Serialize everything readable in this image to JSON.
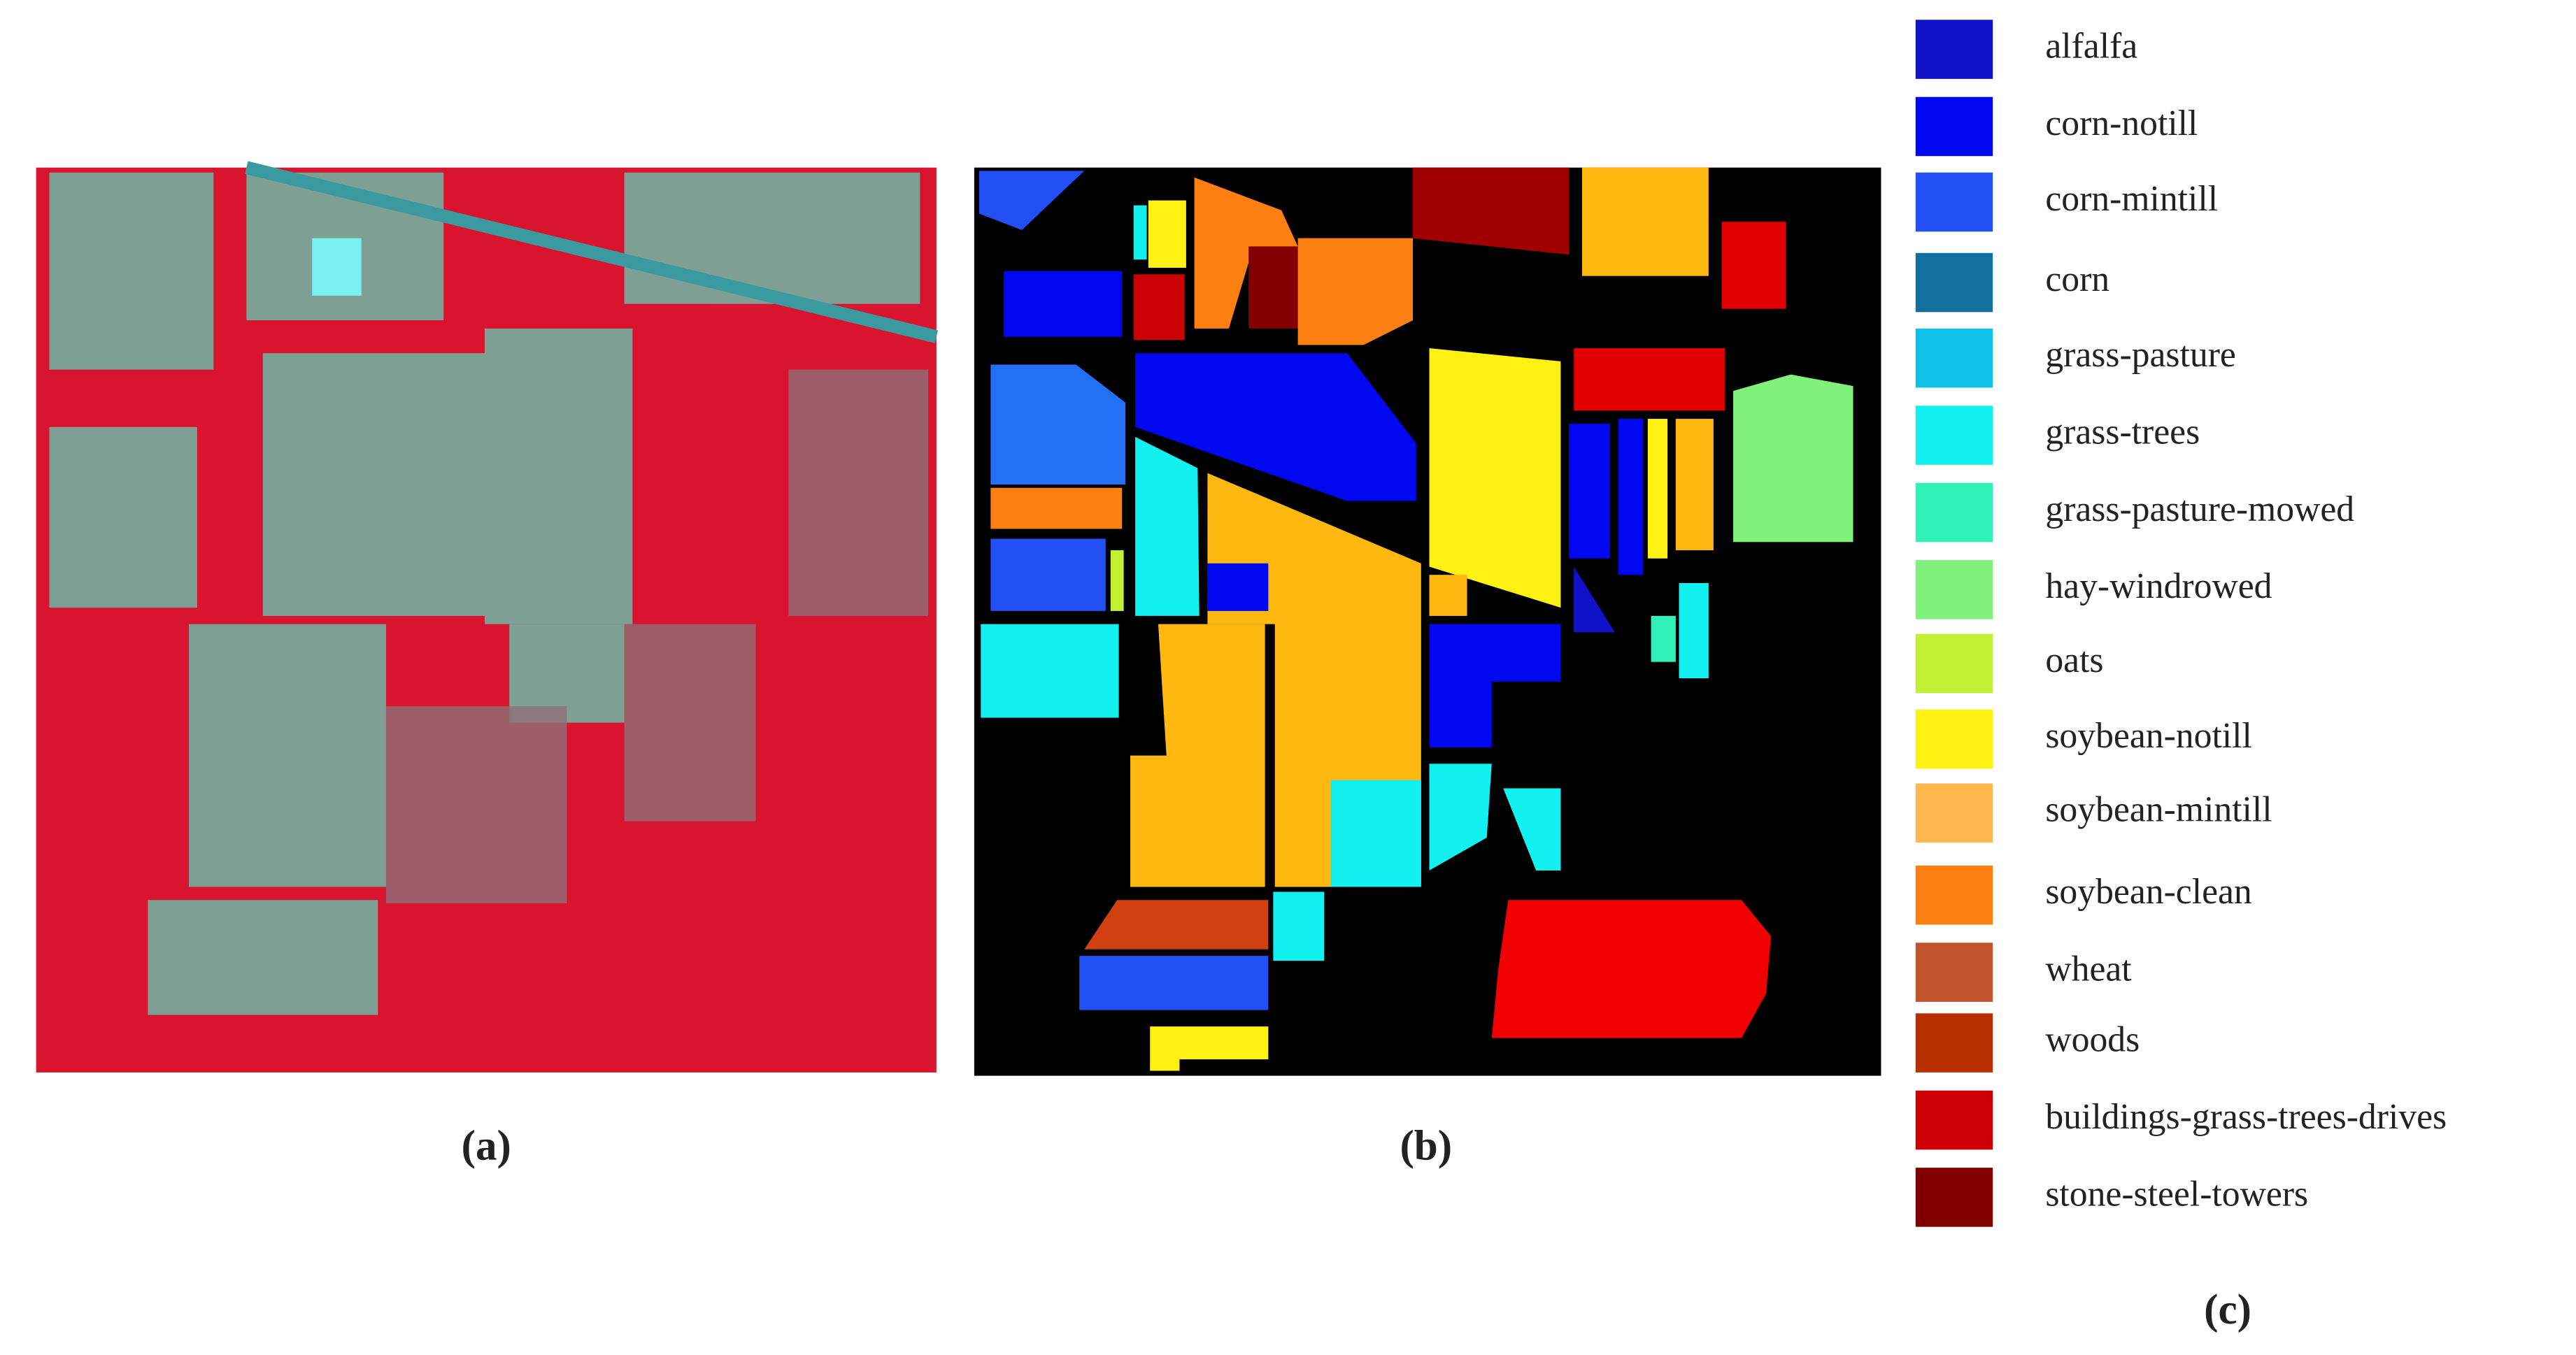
{
  "figure": {
    "panels": [
      "(a)",
      "(b)",
      "(c)"
    ],
    "legend": [
      {
        "name": "alfalfa",
        "color": "#0f12c6"
      },
      {
        "name": "corn-notill",
        "color": "#0008f2"
      },
      {
        "name": "corn-mintill",
        "color": "#2250f4"
      },
      {
        "name": "corn",
        "color": "#13709e"
      },
      {
        "name": "grass-pasture",
        "color": "#10c0e6"
      },
      {
        "name": "grass-trees",
        "color": "#12f0f0"
      },
      {
        "name": "grass-pasture-mowed",
        "color": "#30f2b8"
      },
      {
        "name": "hay-windrowed",
        "color": "#80f27c"
      },
      {
        "name": "oats",
        "color": "#c2f032"
      },
      {
        "name": "soybean-notill",
        "color": "#fff212"
      },
      {
        "name": "soybean-mintill",
        "color": "#ffb84e"
      },
      {
        "name": "soybean-clean",
        "color": "#ff8012"
      },
      {
        "name": "wheat",
        "color": "#c0522c"
      },
      {
        "name": "woods",
        "color": "#b83000"
      },
      {
        "name": "buildings-grass-trees-drives",
        "color": "#cc0004"
      },
      {
        "name": "stone-steel-towers",
        "color": "#800000"
      }
    ]
  }
}
